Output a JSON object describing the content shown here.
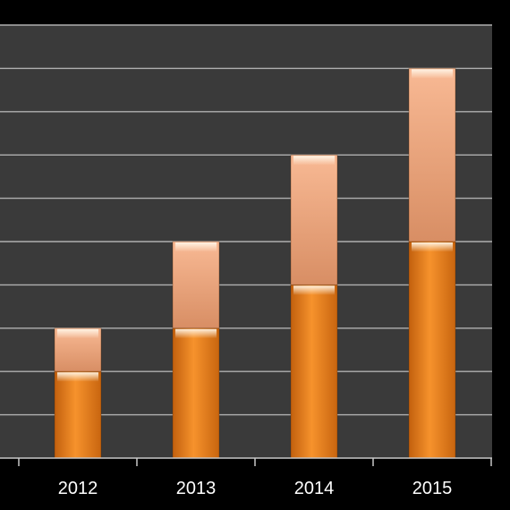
{
  "chart_data": {
    "type": "bar",
    "stacked": true,
    "categories": [
      "2012",
      "2013",
      "2014",
      "2015"
    ],
    "series": [
      {
        "values": [
          2,
          3,
          4,
          5
        ]
      },
      {
        "values": [
          1,
          2,
          3,
          4
        ]
      }
    ],
    "ylim": [
      0,
      10
    ],
    "grid": true,
    "legend": "none",
    "colors": {
      "background": "#000000",
      "plot_area": "#3a3a3a",
      "gridline": "#b0b0b0",
      "axis": "#c8c8c8",
      "series_bottom": "#f08a24",
      "series_top": "#f4b488",
      "tick_text": "#ffffff"
    }
  }
}
